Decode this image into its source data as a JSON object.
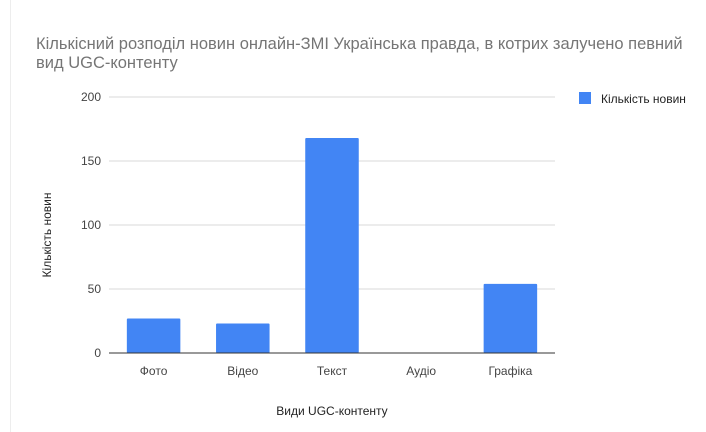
{
  "chart_data": {
    "type": "bar",
    "title": "Кількісний розподіл новин онлайн-ЗМІ Українська правда, в котрих залучено певний вид UGC-контенту",
    "xlabel": "Види UGC-контенту",
    "ylabel": "Кількість новин",
    "categories": [
      "Фото",
      "Відео",
      "Текст",
      "Аудіо",
      "Графіка"
    ],
    "series": [
      {
        "name": "Кількість новин",
        "values": [
          27,
          23,
          168,
          0,
          54
        ]
      }
    ],
    "ylim": [
      0,
      200
    ],
    "yticks": [
      "0",
      "50",
      "100",
      "150",
      "200"
    ],
    "grid": true,
    "legend": "right",
    "colors": {
      "bar": "#4285f4",
      "grid": "#d9d9d9",
      "axis": "#333333",
      "title": "#757575"
    }
  }
}
